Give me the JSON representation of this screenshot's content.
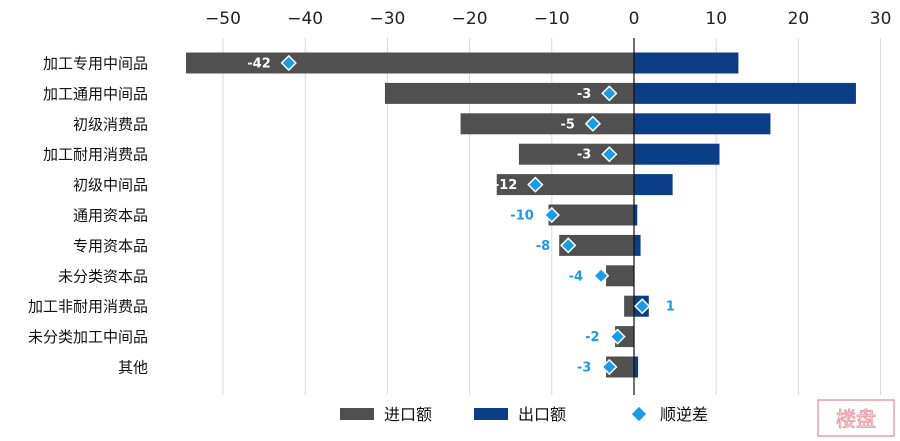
{
  "chart_data": {
    "type": "bar",
    "orientation": "horizontal",
    "categories": [
      "加工专用中间品",
      "加工通用中间品",
      "初级消费品",
      "加工耐用消费品",
      "初级中间品",
      "通用资本品",
      "专用资本品",
      "未分类资本品",
      "加工非耐用消费品",
      "未分类加工中间品",
      "其他"
    ],
    "series": [
      {
        "name": "进口额",
        "color": "#505050",
        "values": [
          -54.5,
          -30.3,
          -21.1,
          -14.0,
          -16.7,
          -10.4,
          -9.1,
          -3.4,
          -1.2,
          -2.3,
          -3.4
        ]
      },
      {
        "name": "出口额",
        "color": "#0b3e86",
        "values": [
          12.7,
          27.0,
          16.6,
          10.4,
          4.7,
          0.4,
          0.8,
          0.0,
          1.8,
          0.0,
          0.5
        ]
      }
    ],
    "diff": {
      "name": "顺逆差",
      "color": "#1a9be8",
      "values": [
        -42,
        -3,
        -5,
        -3,
        -12,
        -10,
        -8,
        -4,
        1,
        -2,
        -3
      ],
      "labels": [
        "-42",
        "-3",
        "-5",
        "-3",
        "-12",
        "-10",
        "-8",
        "-4",
        "1",
        "-2",
        "-3"
      ]
    },
    "xlim": [
      -56,
      30
    ],
    "xticks": [
      -50,
      -40,
      -30,
      -20,
      -10,
      0,
      10,
      20,
      30
    ],
    "xtick_labels": [
      "−50",
      "−40",
      "−30",
      "−20",
      "−10",
      "0",
      "10",
      "20",
      "30"
    ],
    "axis_position": "top",
    "grid": "vertical",
    "legend_position": "bottom-center"
  },
  "watermark": {
    "text": "楼盘"
  }
}
